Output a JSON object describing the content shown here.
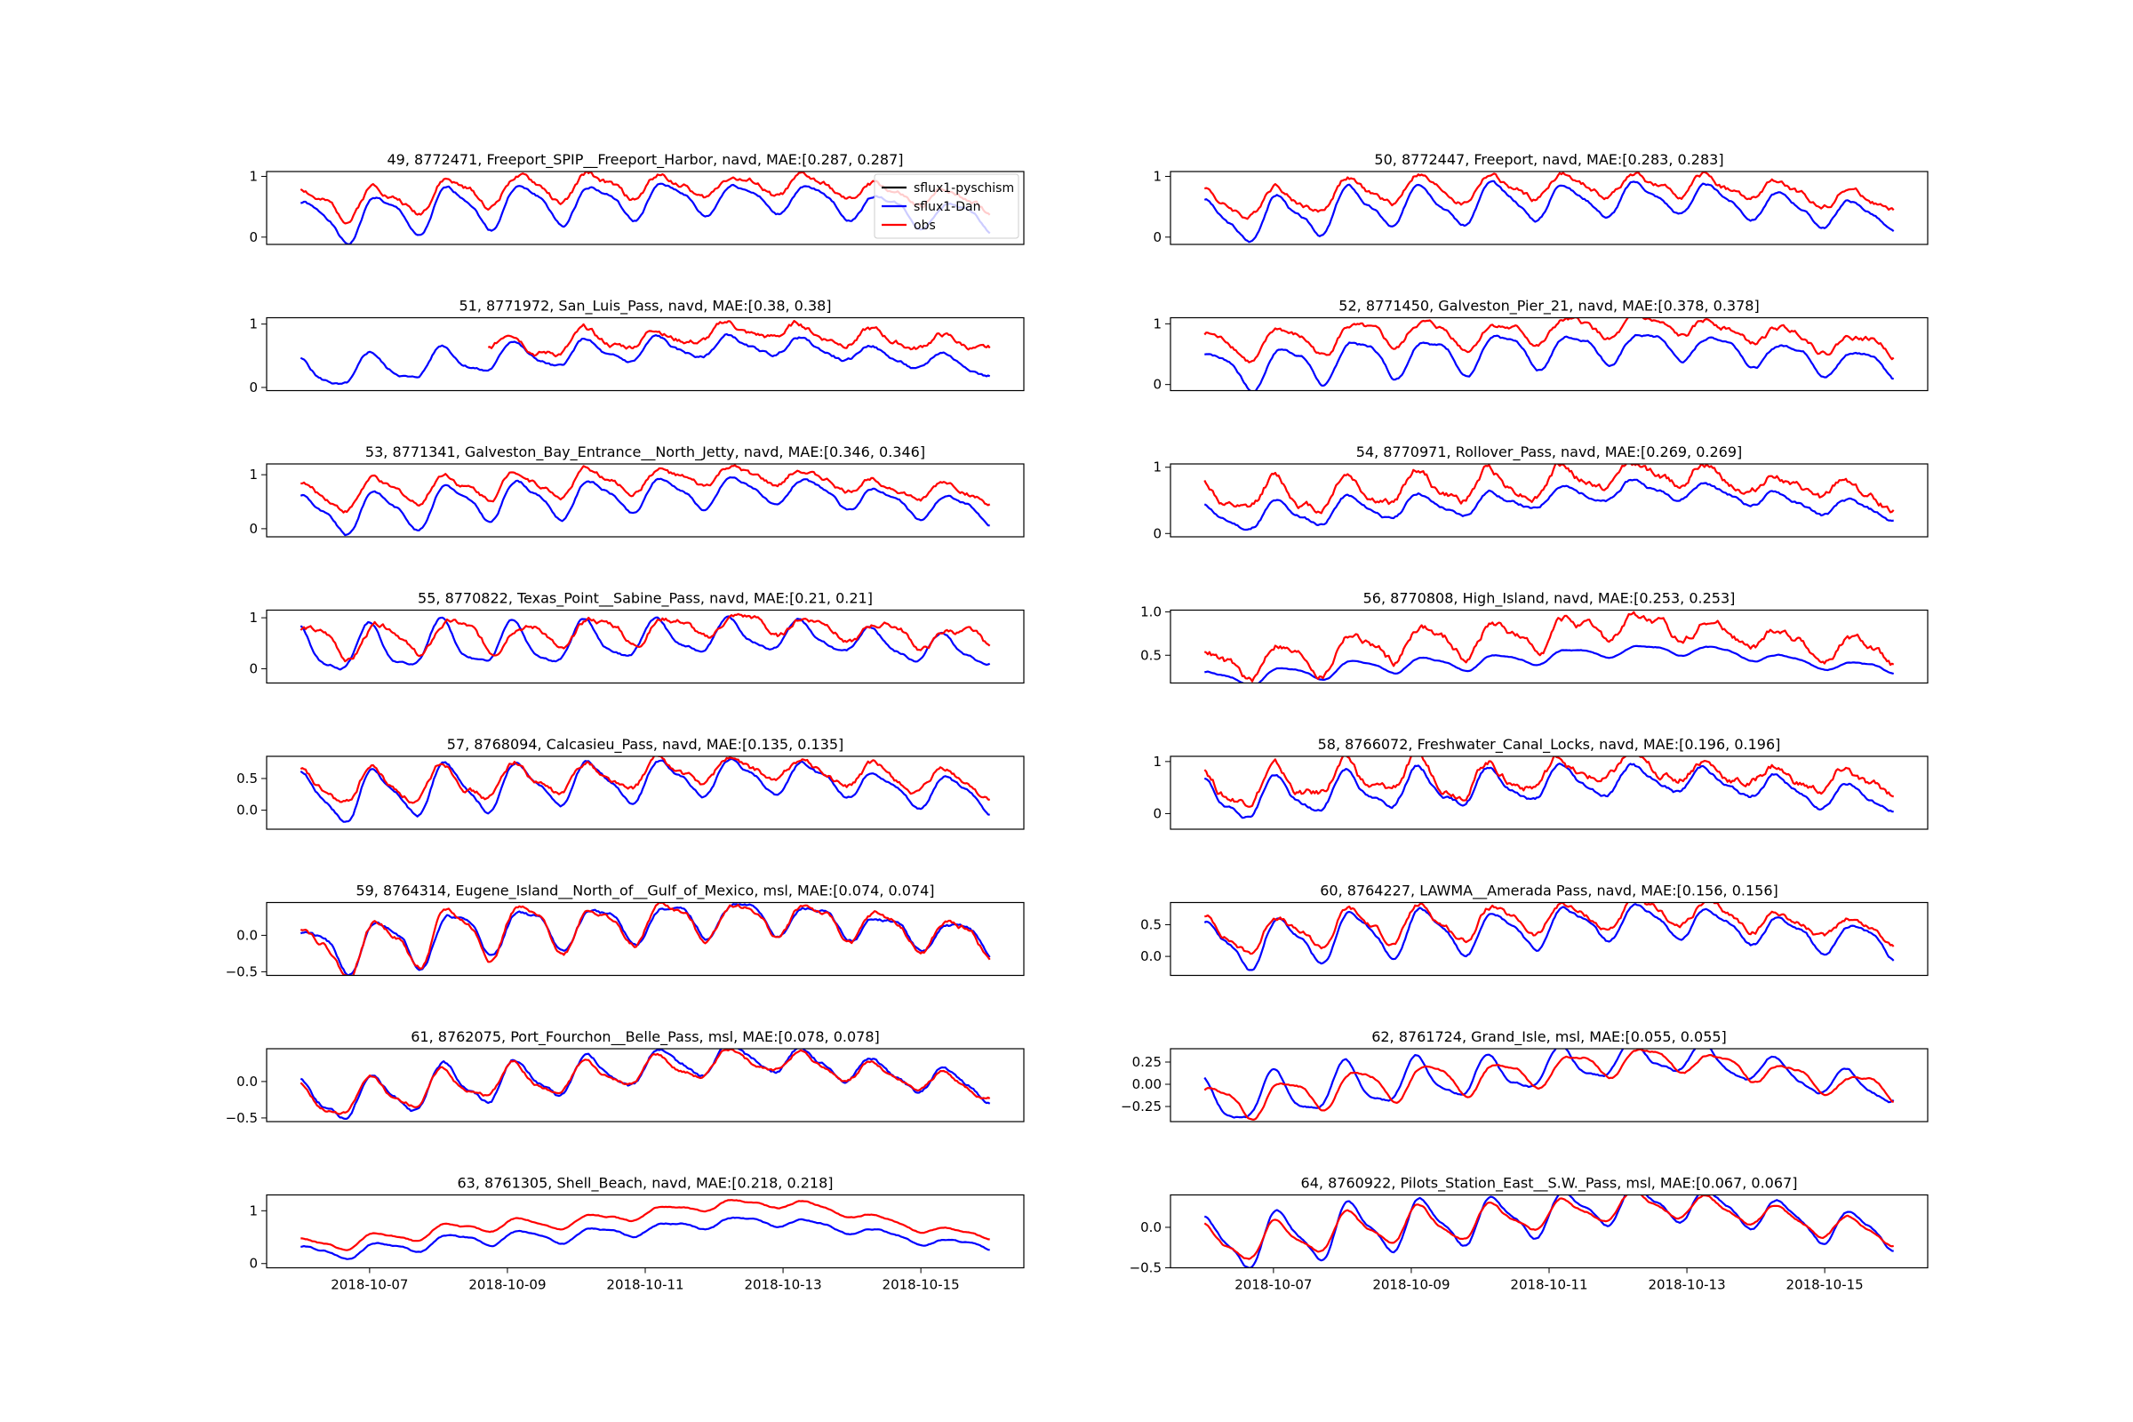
{
  "figure": {
    "x_tick_labels": [
      "2018-10-07",
      "2018-10-09",
      "2018-10-11",
      "2018-10-13",
      "2018-10-15"
    ],
    "x_tick_days": [
      1,
      3,
      5,
      7,
      9
    ],
    "x_range_days": [
      0,
      10
    ],
    "legend_entries": [
      {
        "name": "sflux1-pyschism",
        "color": "#000000"
      },
      {
        "name": "sflux1-Dan",
        "color": "#0000ff"
      },
      {
        "name": "obs",
        "color": "#ff0000"
      }
    ]
  },
  "chart_data": [
    {
      "type": "line",
      "title": "49, 8772471, Freeport_SPIP__Freeport_Harbor, navd, MAE:[0.287, 0.287]",
      "ylim": [
        -0.12,
        1.08
      ],
      "yticks": [
        0,
        1
      ],
      "ytick_labels": [
        "0",
        "1"
      ],
      "series": [
        {
          "name": "sflux1-Dan",
          "color": "#0000ff",
          "base": 0.3,
          "trend": [
            -0.05,
            0.25,
            0.35,
            0.05
          ],
          "amp": 0.28,
          "noise": 0.02,
          "seed": 1
        },
        {
          "name": "obs",
          "color": "#ff0000",
          "base": 0.6,
          "trend": [
            -0.05,
            0.2,
            0.25,
            0.0
          ],
          "amp": 0.2,
          "noise": 0.04,
          "seed": 2
        }
      ]
    },
    {
      "type": "line",
      "title": "50, 8772447, Freeport, navd, MAE:[0.283, 0.283]",
      "ylim": [
        -0.12,
        1.08
      ],
      "yticks": [
        0,
        1
      ],
      "ytick_labels": [
        "0",
        "1"
      ],
      "series": [
        {
          "name": "sflux1-Dan",
          "color": "#0000ff",
          "base": 0.3,
          "trend": [
            -0.05,
            0.25,
            0.35,
            0.05
          ],
          "amp": 0.28,
          "noise": 0.02,
          "seed": 3
        },
        {
          "name": "obs",
          "color": "#ff0000",
          "base": 0.6,
          "trend": [
            -0.05,
            0.2,
            0.25,
            0.0
          ],
          "amp": 0.2,
          "noise": 0.04,
          "seed": 4
        }
      ]
    },
    {
      "type": "line",
      "title": "51, 8771972, San_Luis_Pass, navd, MAE:[0.38, 0.38]",
      "ylim": [
        -0.05,
        1.1
      ],
      "yticks": [
        0,
        1
      ],
      "ytick_labels": [
        "0",
        "1"
      ],
      "series": [
        {
          "name": "sflux1-Dan",
          "color": "#0000ff",
          "base": 0.3,
          "trend": [
            -0.1,
            0.2,
            0.35,
            0.05
          ],
          "amp": 0.18,
          "noise": 0.02,
          "seed": 5
        },
        {
          "name": "obs",
          "color": "#ff0000",
          "base": 0.68,
          "trend": [
            0.0,
            0.0,
            0.2,
            0.0
          ],
          "amp": 0.14,
          "noise": 0.04,
          "seed": 6,
          "start": 0.27
        }
      ]
    },
    {
      "type": "line",
      "title": "52, 8771450, Galveston_Pier_21, navd, MAE:[0.378, 0.378]",
      "ylim": [
        -0.1,
        1.1
      ],
      "yticks": [
        0,
        1
      ],
      "ytick_labels": [
        "0",
        "1"
      ],
      "series": [
        {
          "name": "sflux1-Dan",
          "color": "#0000ff",
          "base": 0.3,
          "trend": [
            -0.05,
            0.2,
            0.35,
            0.05
          ],
          "amp": 0.26,
          "noise": 0.02,
          "seed": 7
        },
        {
          "name": "obs",
          "color": "#ff0000",
          "base": 0.68,
          "trend": [
            -0.05,
            0.15,
            0.25,
            0.0
          ],
          "amp": 0.18,
          "noise": 0.04,
          "seed": 8
        }
      ]
    },
    {
      "type": "line",
      "title": "53, 8771341, Galveston_Bay_Entrance__North_Jetty, navd, MAE:[0.346, 0.346]",
      "ylim": [
        -0.15,
        1.2
      ],
      "yticks": [
        0,
        1
      ],
      "ytick_labels": [
        "0",
        "1"
      ],
      "series": [
        {
          "name": "sflux1-Dan",
          "color": "#0000ff",
          "base": 0.3,
          "trend": [
            -0.05,
            0.25,
            0.4,
            0.05
          ],
          "amp": 0.3,
          "noise": 0.02,
          "seed": 9
        },
        {
          "name": "obs",
          "color": "#ff0000",
          "base": 0.65,
          "trend": [
            -0.05,
            0.2,
            0.3,
            0.0
          ],
          "amp": 0.2,
          "noise": 0.04,
          "seed": 10
        }
      ]
    },
    {
      "type": "line",
      "title": "54, 8770971, Rollover_Pass, navd, MAE:[0.269, 0.269]",
      "ylim": [
        -0.05,
        1.05
      ],
      "yticks": [
        0,
        1
      ],
      "ytick_labels": [
        "0",
        "1"
      ],
      "series": [
        {
          "name": "sflux1-Dan",
          "color": "#0000ff",
          "base": 0.32,
          "trend": [
            -0.1,
            0.1,
            0.35,
            0.0
          ],
          "amp": 0.15,
          "noise": 0.02,
          "seed": 11
        },
        {
          "name": "obs",
          "color": "#ff0000",
          "base": 0.6,
          "trend": [
            -0.1,
            0.1,
            0.3,
            -0.05
          ],
          "amp": 0.2,
          "noise": 0.05,
          "seed": 12
        }
      ]
    },
    {
      "type": "line",
      "title": "55, 8770822, Texas_Point__Sabine_Pass, navd, MAE:[0.21, 0.21]",
      "ylim": [
        -0.28,
        1.15
      ],
      "yticks": [
        0,
        1
      ],
      "ytick_labels": [
        "0",
        "1"
      ],
      "series": [
        {
          "name": "sflux1-Dan",
          "color": "#0000ff",
          "base": 0.35,
          "trend": [
            0.0,
            0.15,
            0.3,
            0.0
          ],
          "amp": 0.35,
          "noise": 0.02,
          "seed": 13
        },
        {
          "name": "obs",
          "color": "#ff0000",
          "base": 0.58,
          "trend": [
            -0.05,
            0.1,
            0.3,
            0.0
          ],
          "amp": 0.25,
          "noise": 0.05,
          "seed": 14
        }
      ]
    },
    {
      "type": "line",
      "title": "56, 8770808, High_Island, navd, MAE:[0.253, 0.253]",
      "ylim": [
        0.18,
        1.02
      ],
      "yticks": [
        0.5,
        1.0
      ],
      "ytick_labels": [
        "0.5",
        "1.0"
      ],
      "series": [
        {
          "name": "sflux1-Dan",
          "color": "#0000ff",
          "base": 0.35,
          "trend": [
            -0.12,
            0.05,
            0.22,
            0.0
          ],
          "amp": 0.07,
          "noise": 0.005,
          "seed": 15
        },
        {
          "name": "obs",
          "color": "#ff0000",
          "base": 0.62,
          "trend": [
            -0.25,
            0.05,
            0.2,
            -0.1
          ],
          "amp": 0.16,
          "noise": 0.04,
          "seed": 16
        }
      ]
    },
    {
      "type": "line",
      "title": "57, 8768094, Calcasieu_Pass, navd, MAE:[0.135, 0.135]",
      "ylim": [
        -0.3,
        0.85
      ],
      "yticks": [
        0.0,
        0.5
      ],
      "ytick_labels": [
        "0.0",
        "0.5"
      ],
      "series": [
        {
          "name": "sflux1-Dan",
          "color": "#0000ff",
          "base": 0.25,
          "trend": [
            -0.05,
            0.15,
            0.3,
            0.0
          ],
          "amp": 0.3,
          "noise": 0.02,
          "seed": 17
        },
        {
          "name": "obs",
          "color": "#ff0000",
          "base": 0.38,
          "trend": [
            -0.05,
            0.1,
            0.25,
            0.0
          ],
          "amp": 0.22,
          "noise": 0.04,
          "seed": 18
        }
      ]
    },
    {
      "type": "line",
      "title": "58, 8766072, Freshwater_Canal_Locks, navd, MAE:[0.196, 0.196]",
      "ylim": [
        -0.3,
        1.1
      ],
      "yticks": [
        0,
        1
      ],
      "ytick_labels": [
        "0",
        "1"
      ],
      "series": [
        {
          "name": "sflux1-Dan",
          "color": "#0000ff",
          "base": 0.3,
          "trend": [
            -0.05,
            0.2,
            0.35,
            0.0
          ],
          "amp": 0.3,
          "noise": 0.03,
          "seed": 19
        },
        {
          "name": "obs",
          "color": "#ff0000",
          "base": 0.55,
          "trend": [
            -0.05,
            0.15,
            0.3,
            0.0
          ],
          "amp": 0.25,
          "noise": 0.07,
          "seed": 20
        }
      ]
    },
    {
      "type": "line",
      "title": "59, 8764314, Eugene_Island__North_of__Gulf_of_Mexico, msl, MAE:[0.074, 0.074]",
      "ylim": [
        -0.55,
        0.45
      ],
      "yticks": [
        -0.5,
        0.0
      ],
      "ytick_labels": [
        "−0.5",
        "0.0"
      ],
      "series": [
        {
          "name": "sflux1-Dan",
          "color": "#0000ff",
          "base": 0.0,
          "trend": [
            -0.2,
            0.1,
            0.25,
            -0.05
          ],
          "amp": 0.25,
          "noise": 0.02,
          "seed": 21
        },
        {
          "name": "obs",
          "color": "#ff0000",
          "base": 0.0,
          "trend": [
            -0.2,
            0.1,
            0.25,
            -0.05
          ],
          "amp": 0.27,
          "noise": 0.03,
          "seed": 22
        }
      ]
    },
    {
      "type": "line",
      "title": "60, 8764227, LAWMA__Amerada Pass, navd, MAE:[0.156, 0.156]",
      "ylim": [
        -0.3,
        0.85
      ],
      "yticks": [
        0.0,
        0.5
      ],
      "ytick_labels": [
        "0.0",
        "0.5"
      ],
      "series": [
        {
          "name": "sflux1-Dan",
          "color": "#0000ff",
          "base": 0.25,
          "trend": [
            -0.1,
            0.15,
            0.3,
            0.0
          ],
          "amp": 0.3,
          "noise": 0.02,
          "seed": 23
        },
        {
          "name": "obs",
          "color": "#ff0000",
          "base": 0.42,
          "trend": [
            -0.1,
            0.1,
            0.25,
            0.0
          ],
          "amp": 0.22,
          "noise": 0.04,
          "seed": 24
        }
      ]
    },
    {
      "type": "line",
      "title": "61, 8762075, Port_Fourchon__Belle_Pass, msl, MAE:[0.078, 0.078]",
      "ylim": [
        -0.55,
        0.45
      ],
      "yticks": [
        -0.5,
        0.0
      ],
      "ytick_labels": [
        "−0.5",
        "0.0"
      ],
      "series": [
        {
          "name": "sflux1-Dan",
          "color": "#0000ff",
          "base": -0.02,
          "trend": [
            -0.25,
            0.05,
            0.35,
            -0.05
          ],
          "amp": 0.22,
          "noise": 0.02,
          "seed": 25
        },
        {
          "name": "obs",
          "color": "#ff0000",
          "base": -0.02,
          "trend": [
            -0.25,
            0.05,
            0.3,
            -0.05
          ],
          "amp": 0.18,
          "noise": 0.02,
          "seed": 26
        }
      ]
    },
    {
      "type": "line",
      "title": "62, 8761724, Grand_Isle, msl, MAE:[0.055, 0.055]",
      "ylim": [
        -0.42,
        0.4
      ],
      "yticks": [
        -0.25,
        0.0,
        0.25
      ],
      "ytick_labels": [
        "−0.25",
        "0.00",
        "0.25"
      ],
      "series": [
        {
          "name": "sflux1-Dan",
          "color": "#0000ff",
          "base": 0.0,
          "trend": [
            -0.2,
            0.05,
            0.3,
            -0.05
          ],
          "amp": 0.2,
          "noise": 0.01,
          "seed": 27
        },
        {
          "name": "obs",
          "color": "#ff0000",
          "base": 0.0,
          "trend": [
            -0.2,
            0.05,
            0.28,
            -0.05
          ],
          "amp": 0.15,
          "noise": 0.01,
          "seed": 28
        }
      ]
    },
    {
      "type": "line",
      "title": "63, 8761305, Shell_Beach, navd, MAE:[0.218, 0.218]",
      "ylim": [
        -0.08,
        1.3
      ],
      "yticks": [
        0,
        1
      ],
      "ytick_labels": [
        "0",
        "1"
      ],
      "series": [
        {
          "name": "sflux1-Dan",
          "color": "#0000ff",
          "base": 0.35,
          "trend": [
            -0.15,
            0.15,
            0.45,
            0.0
          ],
          "amp": 0.1,
          "noise": 0.01,
          "seed": 29
        },
        {
          "name": "obs",
          "color": "#ff0000",
          "base": 0.55,
          "trend": [
            -0.2,
            0.2,
            0.6,
            0.0
          ],
          "amp": 0.1,
          "noise": 0.01,
          "seed": 30
        }
      ]
    },
    {
      "type": "line",
      "title": "64, 8760922, Pilots_Station_East__S.W._Pass, msl, MAE:[0.067, 0.067]",
      "ylim": [
        -0.5,
        0.4
      ],
      "yticks": [
        -0.5,
        0.0
      ],
      "ytick_labels": [
        "−0.5",
        "0.0"
      ],
      "series": [
        {
          "name": "sflux1-Dan",
          "color": "#0000ff",
          "base": 0.0,
          "trend": [
            -0.2,
            0.05,
            0.3,
            -0.05
          ],
          "amp": 0.25,
          "noise": 0.01,
          "seed": 31
        },
        {
          "name": "obs",
          "color": "#ff0000",
          "base": 0.0,
          "trend": [
            -0.2,
            0.05,
            0.28,
            -0.05
          ],
          "amp": 0.18,
          "noise": 0.01,
          "seed": 32
        }
      ]
    }
  ]
}
